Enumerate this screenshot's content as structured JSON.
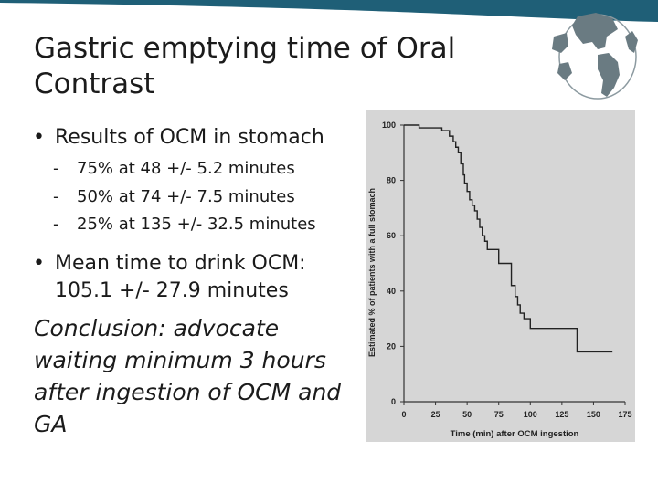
{
  "slide": {
    "title": "Gastric emptying time of Oral Contrast",
    "bullets": [
      {
        "marker": "•",
        "text": "Results of OCM in stomach",
        "subs": [
          {
            "marker": "-",
            "text": "75% at 48 +/- 5.2 minutes"
          },
          {
            "marker": "-",
            "text": "50% at 74 +/- 7.5 minutes"
          },
          {
            "marker": "-",
            "text": "25% at 135 +/- 32.5 minutes"
          }
        ]
      },
      {
        "marker": "•",
        "text": "Mean time to drink OCM: 105.1 +/- 27.9 minutes"
      }
    ],
    "conclusion": "Conclusion: advocate waiting minimum 3 hours after ingestion of OCM and GA"
  },
  "colors": {
    "band": "#1f5f77",
    "chart_bg": "#d6d6d6",
    "curve": "#222222",
    "globe_sea": "#ffffff",
    "globe_land": "#6a7b82"
  },
  "chart_data": {
    "type": "line",
    "style": "step",
    "xlabel": "Time (min) after OCM ingestion",
    "ylabel": "Estimated % of patients with a full stomach",
    "xlim": [
      0,
      175
    ],
    "ylim": [
      0,
      100
    ],
    "x_ticks": [
      0,
      25,
      50,
      75,
      100,
      125,
      150,
      175
    ],
    "y_ticks": [
      0,
      20,
      40,
      60,
      80,
      100
    ],
    "grid": false,
    "series": [
      {
        "x": [
          0,
          12,
          30,
          36,
          39,
          41,
          43,
          45,
          47,
          48,
          50,
          52,
          54,
          56,
          58,
          60,
          62,
          64,
          66,
          68,
          70,
          75,
          85,
          88,
          90,
          92,
          95,
          100,
          137,
          165
        ],
        "y": [
          100,
          99,
          98,
          96,
          94,
          92,
          90,
          86,
          82,
          79,
          76,
          73,
          71,
          69,
          66,
          63,
          60,
          58,
          55,
          55,
          55,
          50,
          42,
          38,
          35,
          32,
          30,
          26.5,
          18,
          18
        ]
      }
    ]
  }
}
